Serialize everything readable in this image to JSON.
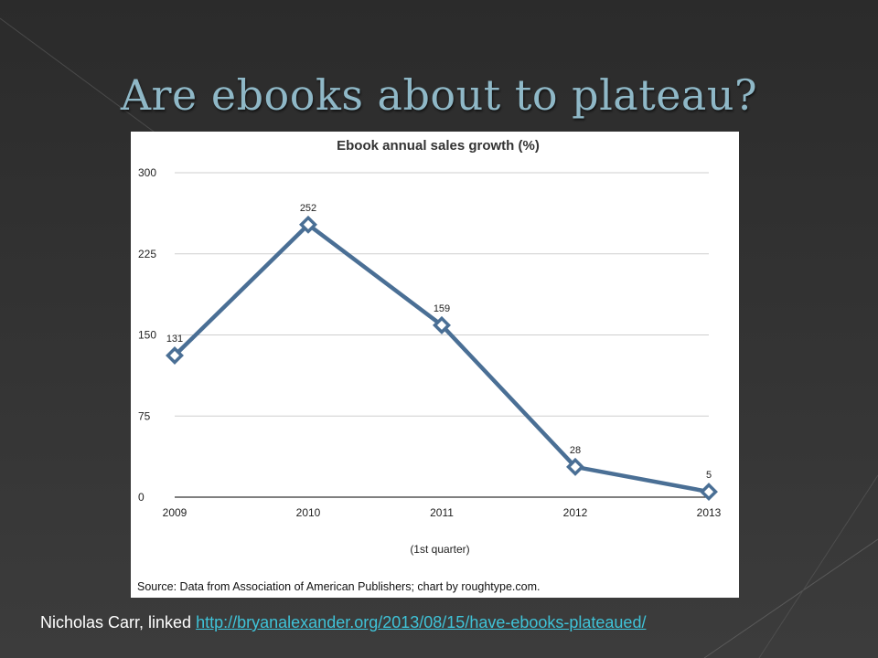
{
  "slide": {
    "title": "Are ebooks about to plateau?",
    "caption_prefix": "Nicholas Carr, linked",
    "caption_link": "http://bryanalexander.org/2013/08/15/have-ebooks-plateaued/",
    "colors": {
      "background": "#333333",
      "title": "#8fb8c7",
      "link": "#3fc3d8"
    }
  },
  "chart_data": {
    "type": "line",
    "title": "Ebook annual sales growth (%)",
    "x": [
      "2009",
      "2010",
      "2011",
      "2012",
      "2013"
    ],
    "x_sublabel": "(1st quarter)",
    "values": [
      131,
      252,
      159,
      28,
      5
    ],
    "data_labels": [
      "131",
      "252",
      "159",
      "28",
      "5"
    ],
    "ylim": [
      0,
      300
    ],
    "yticks": [
      0,
      75,
      150,
      225,
      300
    ],
    "grid": true,
    "marker": "diamond",
    "line_color": "#4a6f95",
    "source": "Source: Data from Association of American Publishers; chart by roughtype.com."
  }
}
